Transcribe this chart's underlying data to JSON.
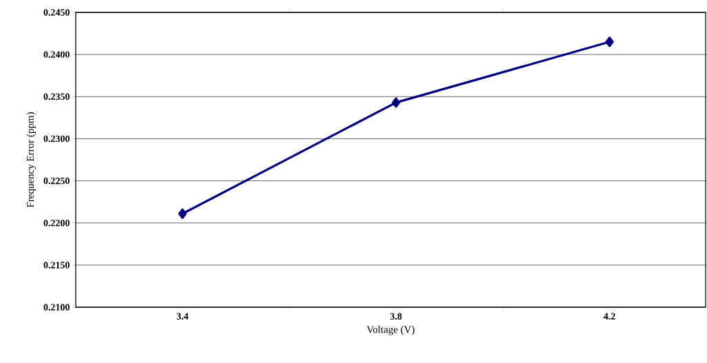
{
  "chart_data": {
    "type": "line",
    "xlabel": "Voltage (V)",
    "ylabel": "Frequency Error (ppm)",
    "categories": [
      "3.4",
      "3.8",
      "4.2"
    ],
    "series": [
      {
        "color": "#000080",
        "values": [
          0.2211,
          0.2343,
          0.2415
        ]
      }
    ],
    "ylim": [
      0.21,
      0.245
    ],
    "yticks": [
      {
        "value": 0.21,
        "label": "0.2100"
      },
      {
        "value": 0.215,
        "label": "0.2150"
      },
      {
        "value": 0.22,
        "label": "0.2200"
      },
      {
        "value": 0.225,
        "label": "0.2250"
      },
      {
        "value": 0.23,
        "label": "0.2300"
      },
      {
        "value": 0.235,
        "label": "0.2350"
      },
      {
        "value": 0.24,
        "label": "0.2400"
      },
      {
        "value": 0.245,
        "label": "0.2450"
      }
    ],
    "grid": "y",
    "marker": "diamond",
    "line_style": "solid"
  }
}
